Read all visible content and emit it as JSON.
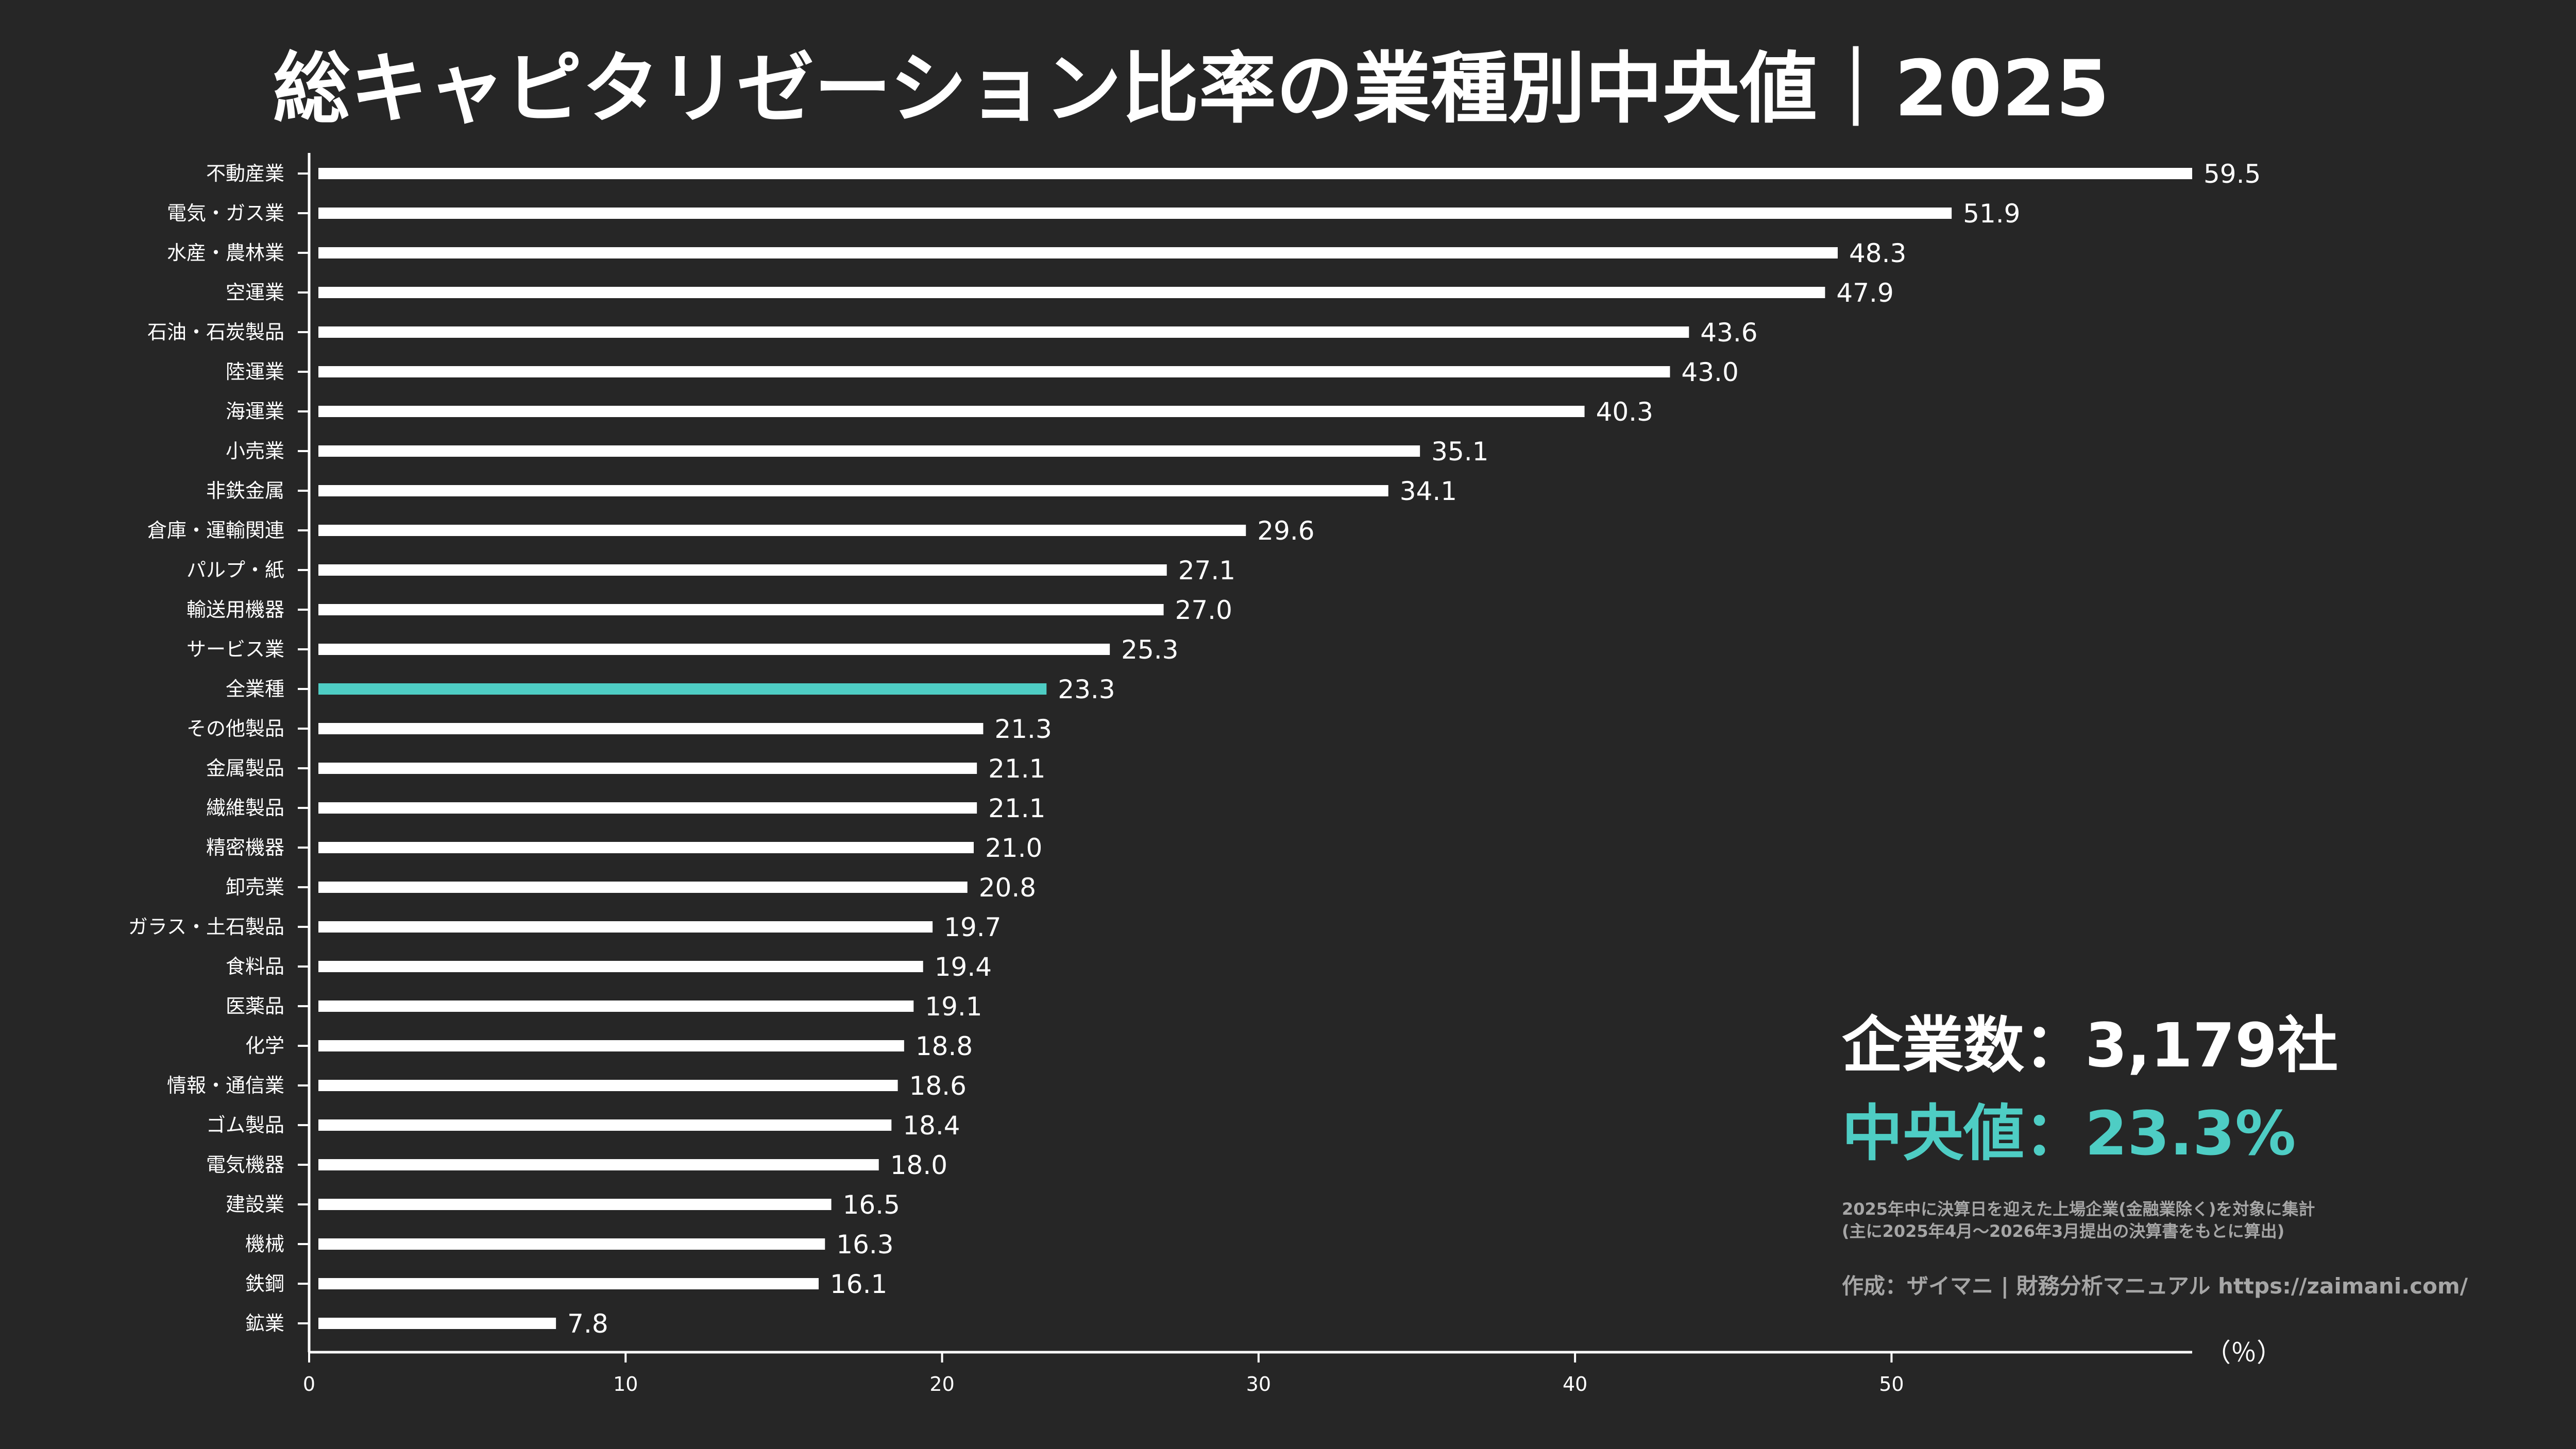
{
  "title": "総キャピタリゼーション比率の業種別中央値｜2025",
  "stats": {
    "count_text": "企業数：3,179社",
    "median_text": "中央値：23.3%"
  },
  "notes": [
    "2025年中に決算日を迎えた上場企業(金融業除く)を対象に集計",
    "(主に2025年4月〜2026年3月提出の決算書をもとに算出)"
  ],
  "credit": "作成：ザイマニ | 財務分析マニュアル https://zaimani.com/",
  "colors": {
    "background": "#262626",
    "bar": "#ffffff",
    "highlight": "#4ecdc4",
    "note": "#a6a6a6"
  },
  "chart_data": {
    "type": "bar",
    "orientation": "horizontal",
    "categories": [
      "不動産業",
      "電気・ガス業",
      "水産・農林業",
      "空運業",
      "石油・石炭製品",
      "陸運業",
      "海運業",
      "小売業",
      "非鉄金属",
      "倉庫・運輸関連",
      "パルプ・紙",
      "輸送用機器",
      "サービス業",
      "全業種",
      "その他製品",
      "金属製品",
      "繊維製品",
      "精密機器",
      "卸売業",
      "ガラス・土石製品",
      "食料品",
      "医薬品",
      "化学",
      "情報・通信業",
      "ゴム製品",
      "電気機器",
      "建設業",
      "機械",
      "鉄鋼",
      "鉱業"
    ],
    "values": [
      59.5,
      51.9,
      48.3,
      47.9,
      43.6,
      43.0,
      40.3,
      35.1,
      34.1,
      29.6,
      27.1,
      27.0,
      25.3,
      23.3,
      21.3,
      21.1,
      21.1,
      21.0,
      20.8,
      19.7,
      19.4,
      19.1,
      18.8,
      18.6,
      18.4,
      18.0,
      16.5,
      16.3,
      16.1,
      7.8
    ],
    "value_labels": [
      "59.5",
      "51.9",
      "48.3",
      "47.9",
      "43.6",
      "43.0",
      "40.3",
      "35.1",
      "34.1",
      "29.6",
      "27.1",
      "27.0",
      "25.3",
      "23.3",
      "21.3",
      "21.1",
      "21.1",
      "21.0",
      "20.8",
      "19.7",
      "19.4",
      "19.1",
      "18.8",
      "18.6",
      "18.4",
      "18.0",
      "16.5",
      "16.3",
      "16.1",
      "7.8"
    ],
    "highlight_category": "全業種",
    "xticks": [
      0,
      10,
      20,
      30,
      40,
      50
    ],
    "xtick_labels": [
      "0",
      "10",
      "20",
      "30",
      "40",
      "50"
    ],
    "xlim": [
      0,
      59.5
    ],
    "xlabel": "（％）",
    "grid": false
  }
}
